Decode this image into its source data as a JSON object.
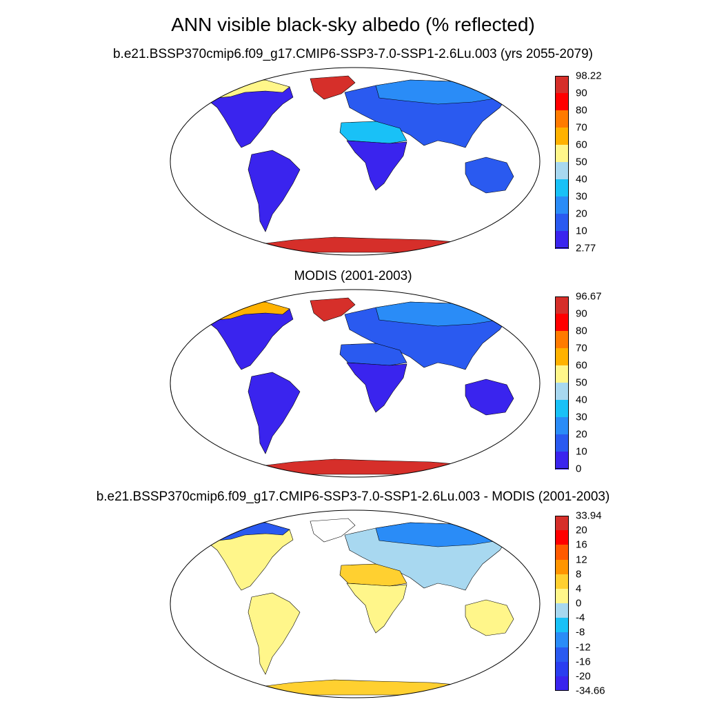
{
  "title": "ANN visible black-sky albedo (% reflected)",
  "panels": [
    {
      "id": "model",
      "title": "b.e21.BSSP370cmip6.f09_g17.CMIP6-SSP3-7.0-SSP1-2.6Lu.003 (yrs 2055-2079)",
      "colorbar": {
        "labels": [
          "98.22",
          "90",
          "80",
          "70",
          "60",
          "50",
          "40",
          "30",
          "20",
          "10",
          "2.77"
        ],
        "colors": [
          "#d62f2a",
          "#ff0000",
          "#ff7b00",
          "#ffb200",
          "#fff68a",
          "#a8d8f0",
          "#19c1f7",
          "#2a8cf7",
          "#2a5af0",
          "#3a24ee"
        ]
      },
      "regions": {
        "antarctica": "#d62f2a",
        "greenland": "#d62f2a",
        "arctic_edge": "#fff68a",
        "north_america": "#3a24ee",
        "south_america": "#3a24ee",
        "europe_asia": "#2a5af0",
        "siberia": "#2a8cf7",
        "sahara": "#19c1f7",
        "africa": "#3a24ee",
        "australia": "#2a5af0"
      }
    },
    {
      "id": "obs",
      "title": "MODIS (2001-2003)",
      "colorbar": {
        "labels": [
          "96.67",
          "90",
          "80",
          "70",
          "60",
          "50",
          "40",
          "30",
          "20",
          "10",
          "0"
        ],
        "colors": [
          "#d62f2a",
          "#ff0000",
          "#ff7b00",
          "#ffb200",
          "#fff68a",
          "#a8d8f0",
          "#19c1f7",
          "#2a8cf7",
          "#2a5af0",
          "#3a24ee"
        ]
      },
      "regions": {
        "antarctica": "#d62f2a",
        "greenland": "#d62f2a",
        "arctic_edge": "#ffb200",
        "north_america": "#3a24ee",
        "south_america": "#3a24ee",
        "europe_asia": "#2a5af0",
        "siberia": "#2a8cf7",
        "sahara": "#2a5af0",
        "africa": "#3a24ee",
        "australia": "#3a24ee"
      }
    },
    {
      "id": "diff",
      "title": "b.e21.BSSP370cmip6.f09_g17.CMIP6-SSP3-7.0-SSP1-2.6Lu.003 - MODIS (2001-2003)",
      "colorbar": {
        "labels": [
          "33.94",
          "20",
          "16",
          "12",
          "8",
          "4",
          "0",
          "-4",
          "-8",
          "-12",
          "-16",
          "-20",
          "-34.66"
        ],
        "colors": [
          "#d62f2a",
          "#ff0000",
          "#ff5a00",
          "#ff9500",
          "#ffd030",
          "#fff68a",
          "#a8d8f0",
          "#19c1f7",
          "#2a8cf7",
          "#2a5af0",
          "#2a3ef0",
          "#3a24ee"
        ]
      },
      "regions": {
        "antarctica": "#ffd030",
        "greenland": "#ffffff",
        "arctic_edge": "#2a5af0",
        "north_america": "#fff68a",
        "south_america": "#fff68a",
        "europe_asia": "#a8d8f0",
        "siberia": "#2a8cf7",
        "sahara": "#ffd030",
        "africa": "#fff68a",
        "australia": "#fff68a"
      }
    }
  ]
}
